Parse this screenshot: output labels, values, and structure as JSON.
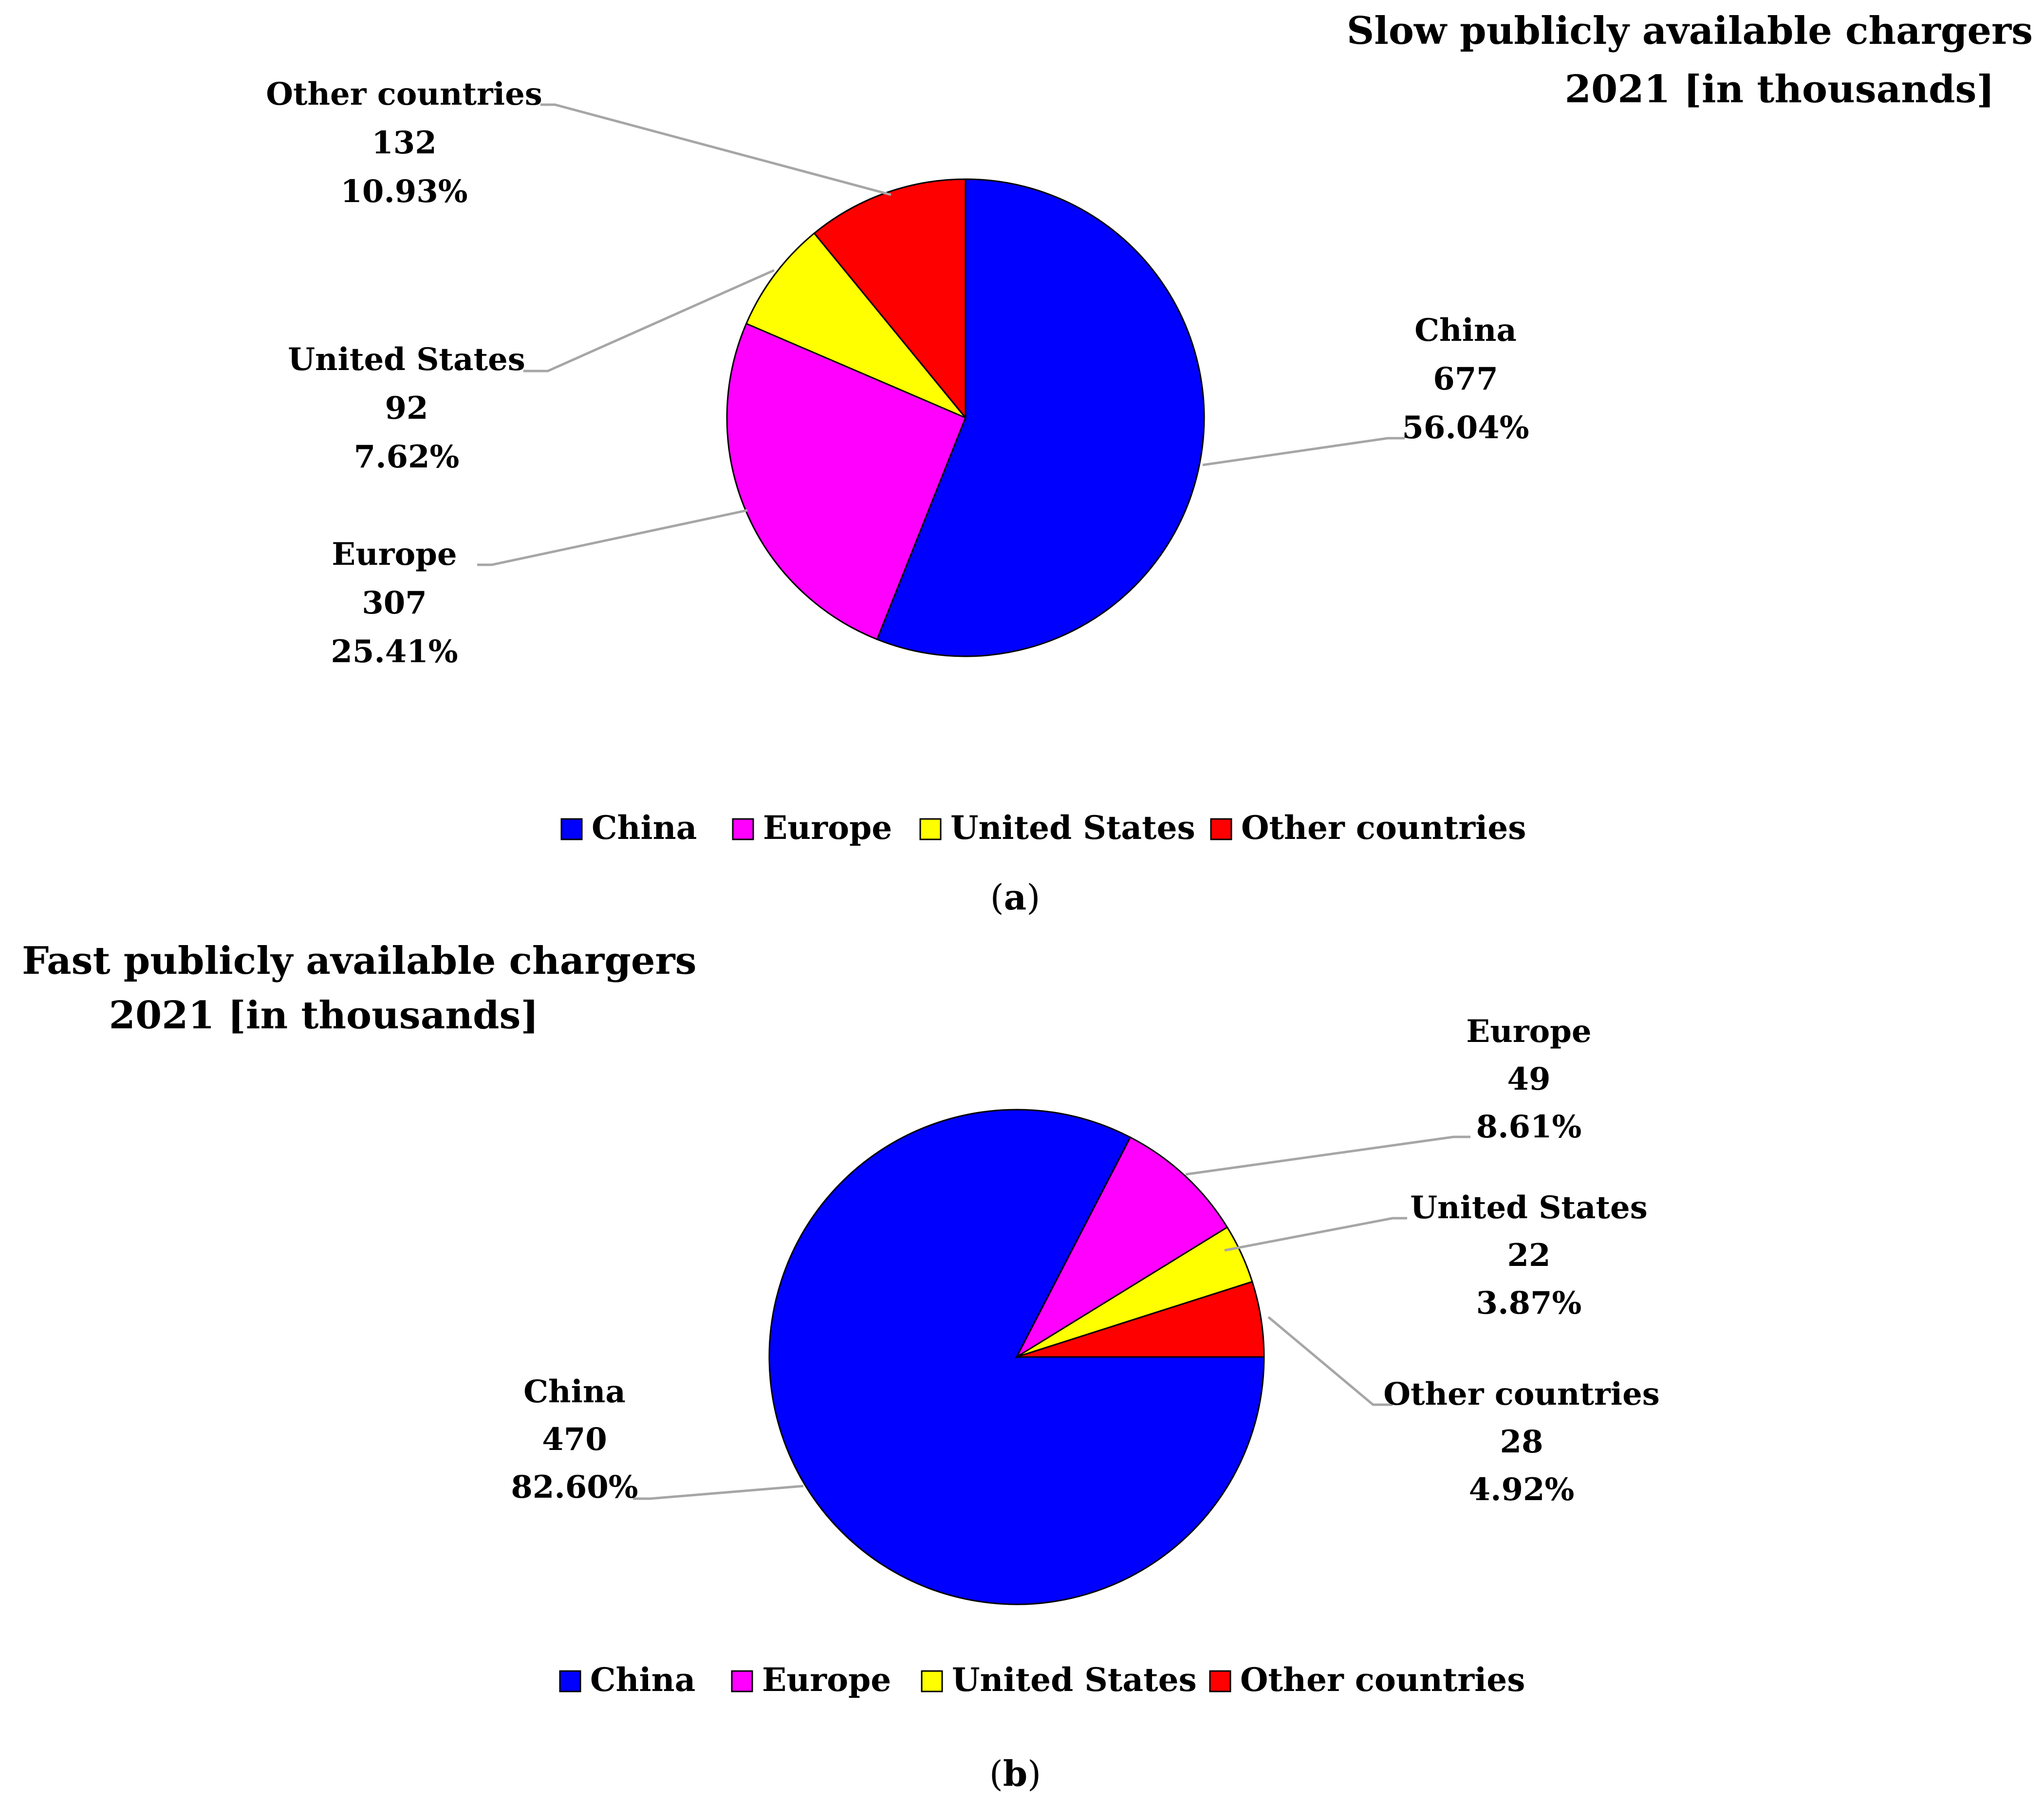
{
  "chart_data": [
    {
      "type": "pie",
      "title": [
        "Slow publicly available chargers",
        "2021 [in thousands]"
      ],
      "panel_label": {
        "open": "(",
        "letter": "a",
        "close": ")"
      },
      "legend": {
        "placement": "bottom"
      },
      "start_angle_deg": 0,
      "slices": [
        {
          "name": "China",
          "value": 677,
          "percent": "56.04%",
          "color": "#0000ff"
        },
        {
          "name": "Europe",
          "value": 307,
          "percent": "25.41%",
          "color": "#ff00ff"
        },
        {
          "name": "United States",
          "value": 92,
          "percent": "7.62%",
          "color": "#ffff00"
        },
        {
          "name": "Other countries",
          "value": 132,
          "percent": "10.93%",
          "color": "#ff0000"
        }
      ]
    },
    {
      "type": "pie",
      "title": [
        "Fast publicly available chargers",
        "2021 [in thousands]"
      ],
      "panel_label": {
        "open": "(",
        "letter": "b",
        "close": ")"
      },
      "legend": {
        "placement": "bottom"
      },
      "start_angle_deg": 90,
      "slices": [
        {
          "name": "China",
          "value": 470,
          "percent": "82.60%",
          "color": "#0000ff"
        },
        {
          "name": "Europe",
          "value": 49,
          "percent": "8.61%",
          "color": "#ff00ff"
        },
        {
          "name": "United States",
          "value": 22,
          "percent": "3.87%",
          "color": "#ffff00"
        },
        {
          "name": "Other countries",
          "value": 28,
          "percent": "4.92%",
          "color": "#ff0000"
        }
      ]
    }
  ]
}
